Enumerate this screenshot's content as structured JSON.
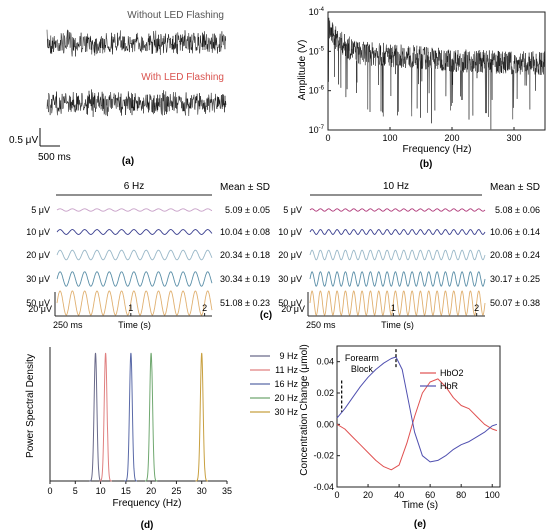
{
  "panels": {
    "a": {
      "label": "(a)",
      "trace_top_label": "Without LED Flashing",
      "trace_bottom_label": "With LED Flashing",
      "scale_v": "0.5 μV",
      "scale_t": "500 ms",
      "colors": {
        "top_label": "#555555",
        "bottom_label": "#d9534f"
      }
    },
    "b": {
      "label": "(b)"
    },
    "c": {
      "label": "(c)"
    },
    "d": {
      "label": "(d)"
    },
    "e": {
      "label": "(e)"
    }
  },
  "chart_data": [
    {
      "panel": "b",
      "type": "line",
      "xlabel": "Frequency (Hz)",
      "ylabel": "Amplitude (V)",
      "xlim": [
        0,
        350
      ],
      "ylim": [
        1e-07,
        0.0001
      ],
      "yscale": "log",
      "xticks": [
        0,
        100,
        200,
        300
      ],
      "yticks": [
        "10-7",
        "10-6",
        "10-5",
        "10-4"
      ],
      "series": [
        {
          "trend_x": [
            1,
            5,
            15,
            30,
            50,
            100,
            200,
            300,
            350
          ],
          "trend_y": [
            4e-05,
            3e-05,
            2e-05,
            1.3e-05,
            9e-06,
            8e-06,
            6e-06,
            5e-06,
            5e-06
          ]
        }
      ]
    },
    {
      "panel": "c-left",
      "type": "line",
      "title": "6 Hz",
      "header": "Mean ± SD",
      "xlabel": "Time (s)",
      "xlim": [
        0,
        2.1
      ],
      "xticks": [
        1,
        2
      ],
      "frequency_hz": 6,
      "scale_v": "20 μV",
      "scale_t": "250 ms",
      "series": [
        {
          "name": "5 μV",
          "amplitude": 5,
          "stat": "5.09 ± 0.05",
          "color": "#c8a0c8"
        },
        {
          "name": "10 μV",
          "amplitude": 10,
          "stat": "10.04 ± 0.08",
          "color": "#3a3f8f"
        },
        {
          "name": "20 μV",
          "amplitude": 20,
          "stat": "20.34 ± 0.18",
          "color": "#9ab8c8"
        },
        {
          "name": "30 μV",
          "amplitude": 30,
          "stat": "30.34 ± 0.19",
          "color": "#5b8fa8"
        },
        {
          "name": "50 μV",
          "amplitude": 50,
          "stat": "51.08 ± 0.23",
          "color": "#e0b070"
        }
      ]
    },
    {
      "panel": "c-right",
      "type": "line",
      "title": "10 Hz",
      "header": "Mean ± SD",
      "xlabel": "Time (s)",
      "xlim": [
        0,
        2.1
      ],
      "xticks": [
        1,
        2
      ],
      "frequency_hz": 10,
      "scale_v": "20 μV",
      "scale_t": "250 ms",
      "series": [
        {
          "name": "5 μV",
          "amplitude": 5,
          "stat": "5.08 ± 0.06",
          "color": "#b03a7a"
        },
        {
          "name": "10 μV",
          "amplitude": 10,
          "stat": "10.06 ± 0.14",
          "color": "#3a3f8f"
        },
        {
          "name": "20 μV",
          "amplitude": 20,
          "stat": "20.08 ± 0.24",
          "color": "#9ab8c8"
        },
        {
          "name": "30 μV",
          "amplitude": 30,
          "stat": "30.17 ± 0.25",
          "color": "#5b8fa8"
        },
        {
          "name": "50 μV",
          "amplitude": 50,
          "stat": "50.07 ± 0.38",
          "color": "#e0b070"
        }
      ]
    },
    {
      "panel": "d",
      "type": "line",
      "xlabel": "Frequency (Hz)",
      "ylabel": "Power Spectral Density",
      "xlim": [
        0,
        35
      ],
      "xticks": [
        0,
        5,
        10,
        15,
        20,
        25,
        30,
        35
      ],
      "legend": "top-right",
      "series": [
        {
          "name": "9 Hz",
          "peak": 9,
          "color": "#6a6a8a"
        },
        {
          "name": "11 Hz",
          "peak": 11,
          "color": "#e08080"
        },
        {
          "name": "16 Hz",
          "peak": 16,
          "color": "#5a6aa8"
        },
        {
          "name": "20 Hz",
          "peak": 20,
          "color": "#70a870"
        },
        {
          "name": "30 Hz",
          "peak": 30,
          "color": "#c8a040"
        }
      ]
    },
    {
      "panel": "e",
      "type": "line",
      "xlabel": "Time (s)",
      "ylabel": "Concentration Change (μmol)",
      "xlim": [
        0,
        105
      ],
      "ylim": [
        -0.04,
        0.05
      ],
      "xticks": [
        0,
        20,
        40,
        60,
        80,
        100
      ],
      "yticks": [
        -0.04,
        -0.02,
        0.0,
        0.02,
        0.04
      ],
      "ytick_labels": [
        "-0.04",
        "-0.02",
        "0.00",
        "0.02",
        "0.04"
      ],
      "annotation": {
        "lines": [
          "Forearm",
          "Block"
        ],
        "markers_x": [
          3,
          38
        ]
      },
      "legend": "top-right",
      "series": [
        {
          "name": "HbO2",
          "color": "#e05050",
          "x": [
            0,
            5,
            10,
            15,
            20,
            25,
            30,
            35,
            40,
            45,
            50,
            55,
            60,
            65,
            70,
            75,
            80,
            85,
            90,
            95,
            100,
            103
          ],
          "y": [
            0.0,
            -0.003,
            -0.008,
            -0.013,
            -0.018,
            -0.023,
            -0.027,
            -0.029,
            -0.026,
            -0.012,
            0.005,
            0.02,
            0.027,
            0.029,
            0.024,
            0.017,
            0.012,
            0.01,
            0.005,
            0.0,
            -0.003,
            -0.004
          ]
        },
        {
          "name": "HbR",
          "color": "#5050b0",
          "x": [
            0,
            5,
            10,
            15,
            20,
            25,
            30,
            35,
            38,
            42,
            46,
            50,
            55,
            60,
            65,
            70,
            75,
            80,
            85,
            90,
            95,
            100,
            103
          ],
          "y": [
            0.004,
            0.01,
            0.017,
            0.024,
            0.03,
            0.035,
            0.039,
            0.042,
            0.043,
            0.035,
            0.015,
            -0.005,
            -0.02,
            -0.024,
            -0.023,
            -0.02,
            -0.016,
            -0.013,
            -0.011,
            -0.008,
            -0.005,
            -0.001,
            0.0
          ]
        }
      ]
    }
  ]
}
